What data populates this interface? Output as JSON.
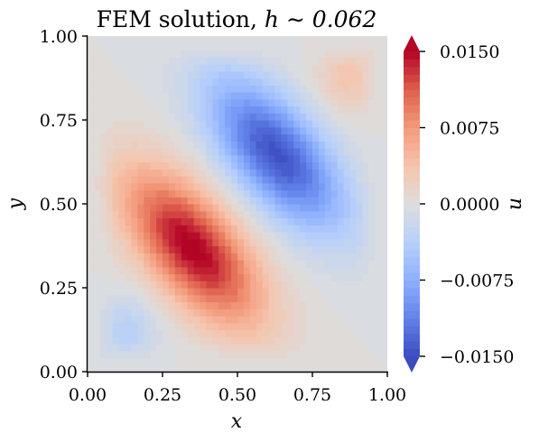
{
  "chart_data": {
    "type": "heatmap",
    "title": "FEM solution, ",
    "title_math": "h ∼ 0.062",
    "xlabel": "x",
    "ylabel": "y",
    "colorbar_label": "u",
    "xlim": [
      0.0,
      1.0
    ],
    "ylim": [
      0.0,
      1.0
    ],
    "x_ticks": [
      0.0,
      0.25,
      0.5,
      0.75,
      1.0
    ],
    "y_ticks": [
      0.0,
      0.25,
      0.5,
      0.75,
      1.0
    ],
    "x_tick_labels": [
      "0.00",
      "0.25",
      "0.50",
      "0.75",
      "1.00"
    ],
    "y_tick_labels": [
      "0.00",
      "0.25",
      "0.50",
      "0.75",
      "1.00"
    ],
    "colorbar_ticks": [
      0.015,
      0.0075,
      0.0,
      -0.0075,
      -0.015
    ],
    "colorbar_tick_labels": [
      "0.0150",
      "0.0075",
      "0.0000",
      "−0.0075",
      "−0.0150"
    ],
    "value_range": [
      -0.015,
      0.015
    ],
    "colormap": "coolwarm",
    "colorbar_extend": "both",
    "levels": 40,
    "grid": false,
    "features": [
      {
        "x": 0.35,
        "y": 0.37,
        "value": 0.0155
      },
      {
        "x": 0.63,
        "y": 0.65,
        "value": -0.0145
      },
      {
        "x": 0.13,
        "y": 0.12,
        "value": -0.0035
      },
      {
        "x": 0.87,
        "y": 0.88,
        "value": 0.0035
      }
    ]
  }
}
